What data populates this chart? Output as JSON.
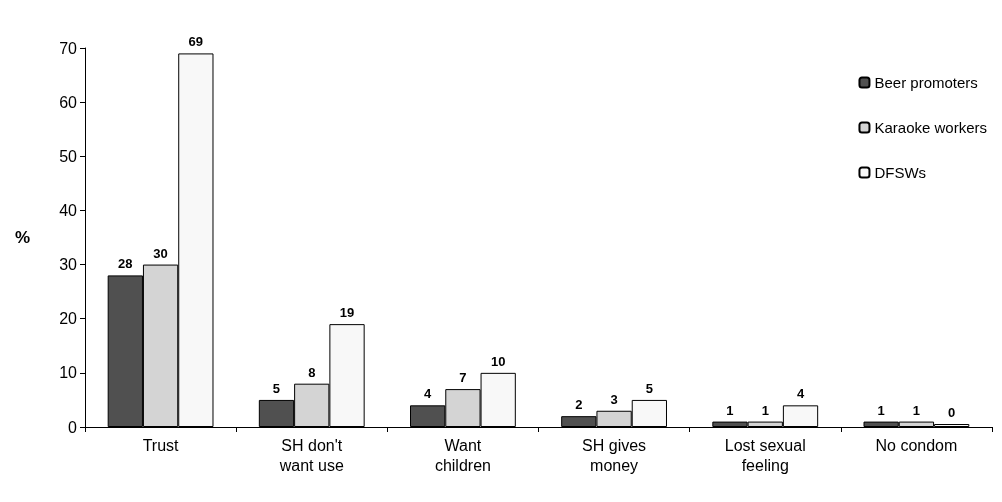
{
  "chart_data": {
    "type": "bar",
    "ylabel": "%",
    "categories": [
      "Trust",
      "SH don't\nwant use",
      "Want\nchildren",
      "SH gives\nmoney",
      "Lost sexual\nfeeling",
      "No condom"
    ],
    "series": [
      {
        "name": "Beer promoters",
        "color": "#505050",
        "values": [
          28,
          5,
          4,
          2,
          1,
          1
        ]
      },
      {
        "name": "Karaoke workers",
        "color": "#d4d4d4",
        "values": [
          30,
          8,
          7,
          3,
          1,
          1
        ]
      },
      {
        "name": "DFSWs",
        "color": "#f8f8f8",
        "values": [
          69,
          19,
          10,
          5,
          4,
          0
        ]
      }
    ],
    "ylim": [
      0,
      70
    ],
    "yticks": [
      0,
      10,
      20,
      30,
      40,
      50,
      60,
      70
    ],
    "data_labels": true,
    "grid": false,
    "legend": "top right"
  }
}
